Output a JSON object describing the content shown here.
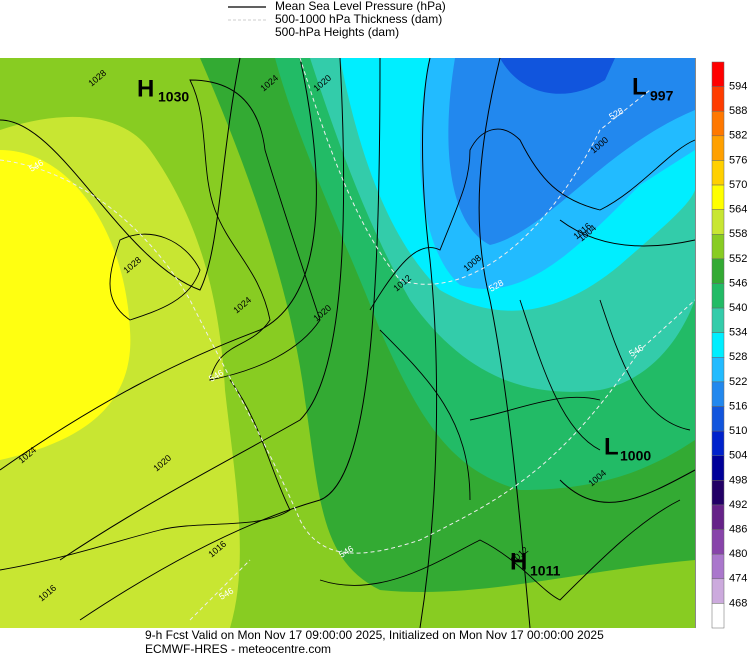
{
  "legend": {
    "items": [
      "Mean Sea Level Pressure (hPa)",
      "500-1000 hPa Thickness (dam)",
      "500-hPa Heights (dam)"
    ]
  },
  "colorbar": {
    "labels": [
      "594",
      "588",
      "582",
      "576",
      "570",
      "564",
      "558",
      "552",
      "546",
      "540",
      "534",
      "528",
      "522",
      "516",
      "510",
      "504",
      "498",
      "492",
      "486",
      "480",
      "474",
      "468"
    ],
    "colors": [
      "#ff0000",
      "#ff3c00",
      "#ff7800",
      "#ffa000",
      "#ffd000",
      "#ffff00",
      "#c8e632",
      "#88cc22",
      "#33aa33",
      "#22bb66",
      "#33ccaa",
      "#00eeff",
      "#22bbff",
      "#2288ee",
      "#1155dd",
      "#0022cc",
      "#000099",
      "#220066",
      "#662288",
      "#8844aa",
      "#aa77cc",
      "#ccaadd",
      "#ffffff"
    ]
  },
  "centers": [
    {
      "letter": "H",
      "value": "1030"
    },
    {
      "letter": "L",
      "value": "997"
    },
    {
      "letter": "L",
      "value": "1000"
    },
    {
      "letter": "H",
      "value": "1011"
    }
  ],
  "isobar_labels": [
    "1028",
    "1024",
    "1028",
    "1024",
    "1020",
    "1024",
    "1020",
    "1016",
    "1016",
    "1016",
    "1012",
    "1012",
    "1008",
    "1004",
    "1000",
    "1004",
    "1020"
  ],
  "thickness_labels": [
    "546",
    "546",
    "546",
    "528",
    "528",
    "546",
    "546"
  ],
  "footer": {
    "line1": "9-h Fcst Valid on Mon Nov 17 09:00:00 2025, Initialized on Mon Nov 17 00:00:00 2025",
    "line2": "ECMWF-HRES  - meteocentre.com"
  }
}
